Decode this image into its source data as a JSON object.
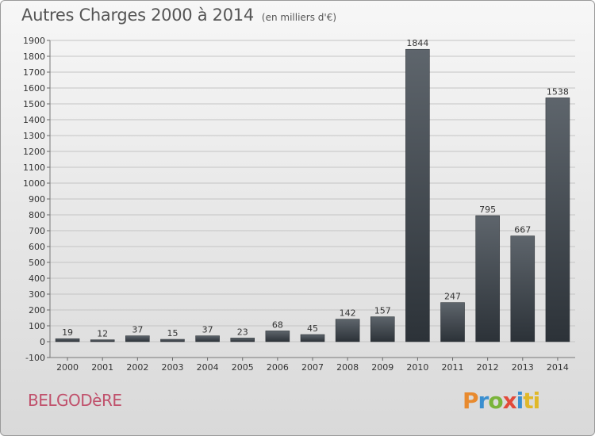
{
  "page": {
    "title": "Autres Charges 2000 à 2014",
    "subtitle": "(en milliers d'€)",
    "commune": "BELGODèRE",
    "logo": [
      "P",
      "r",
      "o",
      "x",
      "i",
      "ti"
    ]
  },
  "chart_data": {
    "type": "bar",
    "title": "Autres Charges 2000 à 2014",
    "subtitle": "(en milliers d'€)",
    "categories": [
      "2000",
      "2001",
      "2002",
      "2003",
      "2004",
      "2005",
      "2006",
      "2007",
      "2008",
      "2009",
      "2010",
      "2011",
      "2012",
      "2013",
      "2014"
    ],
    "values": [
      19,
      12,
      37,
      15,
      37,
      23,
      68,
      45,
      142,
      157,
      1844,
      247,
      795,
      667,
      1538
    ],
    "ylim": [
      -100,
      1900
    ],
    "yticks": [
      -100,
      0,
      100,
      200,
      300,
      400,
      500,
      600,
      700,
      800,
      900,
      1000,
      1100,
      1200,
      1300,
      1400,
      1500,
      1600,
      1700,
      1800,
      1900
    ],
    "grid": true,
    "bar_color": "#3d444b"
  }
}
